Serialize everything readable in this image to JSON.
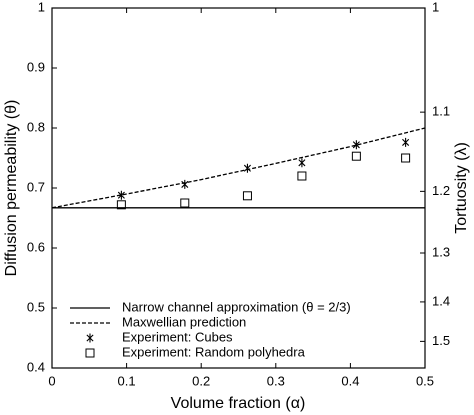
{
  "chart_data": {
    "type": "line",
    "x_label": "Volume fraction (α)",
    "y_label": "Diffusion permeability (θ)",
    "y2_label": "Tortuosity (λ)",
    "xlim": [
      0,
      0.5
    ],
    "xticks": [
      0,
      0.1,
      0.2,
      0.3,
      0.4,
      0.5
    ],
    "ylim": [
      0.4,
      1
    ],
    "yticks": [
      0.4,
      0.5,
      0.6,
      0.7,
      0.8,
      0.9,
      1
    ],
    "y2lim": [
      1,
      1.581
    ],
    "y2scale": "inverse-square",
    "y2ticks": [
      1,
      1.1,
      1.2,
      1.3,
      1.4,
      1.5
    ],
    "legend": "lower left",
    "series": [
      {
        "name": "Narrow channel approximation (θ = 2/3)",
        "color": "#000000",
        "style": "solid",
        "marker": "none",
        "x": [
          0,
          0.5
        ],
        "values": [
          0.667,
          0.667
        ]
      },
      {
        "name": "Maxwellian prediction",
        "color": "#000000",
        "style": "dashed",
        "marker": "none",
        "x": [
          0,
          0.1,
          0.2,
          0.3,
          0.4,
          0.5
        ],
        "values": [
          0.667,
          0.69,
          0.714,
          0.741,
          0.769,
          0.8
        ]
      },
      {
        "name": "Experiment: Cubes",
        "color": "#000000",
        "style": "none",
        "marker": "asterisk",
        "x": [
          0.093,
          0.178,
          0.262,
          0.335,
          0.408,
          0.474
        ],
        "values": [
          0.688,
          0.706,
          0.733,
          0.742,
          0.772,
          0.776
        ]
      },
      {
        "name": "Experiment: Random polyhedra",
        "color": "#000000",
        "style": "none",
        "marker": "square",
        "x": [
          0.093,
          0.178,
          0.262,
          0.335,
          0.408,
          0.474
        ],
        "values": [
          0.672,
          0.675,
          0.687,
          0.72,
          0.753,
          0.75
        ]
      }
    ]
  }
}
